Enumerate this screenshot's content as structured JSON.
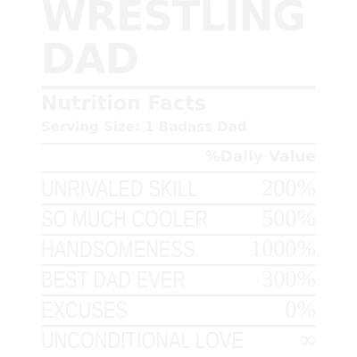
{
  "title": {
    "line1": "WRESTLING",
    "line2": "DAD"
  },
  "label": {
    "heading": "Nutrition Facts",
    "serving": "Serving Size: 1 Badass Dad",
    "daily_value_header": "%Daily Value"
  },
  "rows": [
    {
      "label": "UNRIVALED SKILL",
      "value": "200%"
    },
    {
      "label": "SO MUCH COOLER",
      "value": "500%"
    },
    {
      "label": "HANDSOMENESS",
      "value": "1000%"
    },
    {
      "label": "BEST DAD EVER",
      "value": "300%"
    },
    {
      "label": "EXCUSES",
      "value": "0%"
    },
    {
      "label": "UNCONDITIONAL LOVE",
      "value": "∞"
    }
  ],
  "colors": {
    "background": "#ffffff",
    "text": "#f2f2f2"
  }
}
